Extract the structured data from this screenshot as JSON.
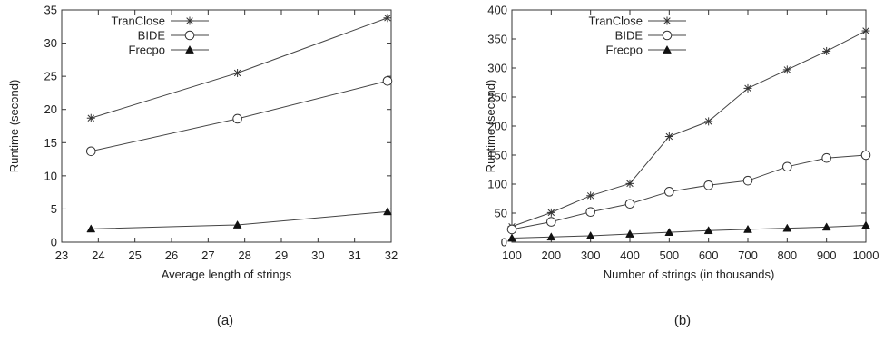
{
  "chart_data": [
    {
      "type": "line",
      "caption": "(a)",
      "xlabel": "Average length of strings",
      "ylabel": "Runtime (second)",
      "xlim": [
        23,
        32
      ],
      "ylim": [
        0,
        35
      ],
      "xticks": [
        23,
        24,
        25,
        26,
        27,
        28,
        29,
        30,
        31,
        32
      ],
      "yticks": [
        0,
        5,
        10,
        15,
        20,
        25,
        30,
        35
      ],
      "legend_position": "top-left",
      "grid": false,
      "series": [
        {
          "name": "TranClose",
          "marker": "star",
          "x": [
            23.8,
            27.8,
            31.9
          ],
          "values": [
            18.7,
            25.5,
            33.8
          ]
        },
        {
          "name": "BIDE",
          "marker": "circle",
          "x": [
            23.8,
            27.8,
            31.9
          ],
          "values": [
            13.7,
            18.6,
            24.3
          ]
        },
        {
          "name": "Frecpo",
          "marker": "triangle",
          "x": [
            23.8,
            27.8,
            31.9
          ],
          "values": [
            2.0,
            2.6,
            4.6
          ]
        }
      ]
    },
    {
      "type": "line",
      "caption": "(b)",
      "xlabel": "Number of strings (in thousands)",
      "ylabel": "Runtime (second)",
      "xlim": [
        100,
        1000
      ],
      "ylim": [
        0,
        400
      ],
      "xticks": [
        100,
        200,
        300,
        400,
        500,
        600,
        700,
        800,
        900,
        1000
      ],
      "yticks": [
        0,
        50,
        100,
        150,
        200,
        250,
        300,
        350,
        400
      ],
      "legend_position": "top-left",
      "grid": false,
      "series": [
        {
          "name": "TranClose",
          "marker": "star",
          "x": [
            100,
            200,
            300,
            400,
            500,
            600,
            700,
            800,
            900,
            1000
          ],
          "values": [
            27,
            51,
            80,
            101,
            182,
            208,
            265,
            297,
            329,
            364
          ]
        },
        {
          "name": "BIDE",
          "marker": "circle",
          "x": [
            100,
            200,
            300,
            400,
            500,
            600,
            700,
            800,
            900,
            1000
          ],
          "values": [
            22,
            35,
            52,
            66,
            87,
            98,
            106,
            130,
            145,
            150
          ]
        },
        {
          "name": "Frecpo",
          "marker": "triangle",
          "x": [
            100,
            200,
            300,
            400,
            500,
            600,
            700,
            800,
            900,
            1000
          ],
          "values": [
            7,
            9,
            11,
            14,
            17,
            20,
            22,
            24,
            26,
            29
          ]
        }
      ]
    }
  ]
}
